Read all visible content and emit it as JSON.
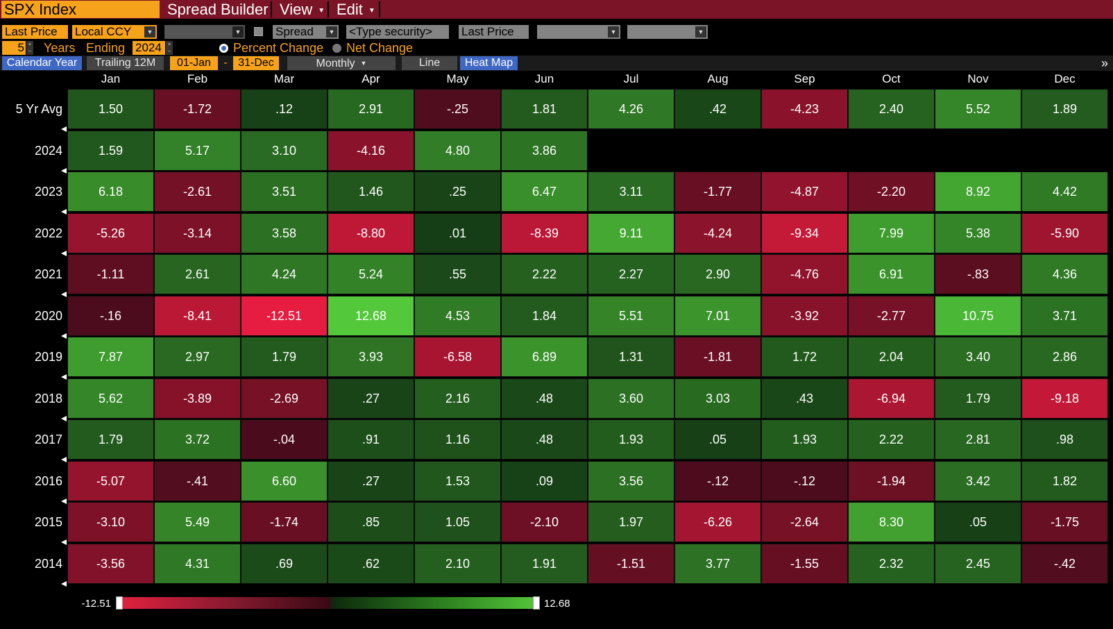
{
  "titlebar": {
    "security": "SPX Index",
    "menus": [
      {
        "label": "Spread Builder",
        "caret": ""
      },
      {
        "label": "View",
        "caret": "▼"
      },
      {
        "label": "Edit",
        "caret": "▼"
      }
    ]
  },
  "toolbar": {
    "price_field": "Last Price",
    "currency": "Local CCY",
    "spread_label": "Spread",
    "security_placeholder": "<Type security>",
    "price_field_2": "Last Price",
    "years_value": "5",
    "years_label": "Years",
    "ending_label": "Ending",
    "ending_year": "2024",
    "percent_change_label": "Percent Change",
    "net_change_label": "Net Change"
  },
  "tabs": {
    "calendar_year": "Calendar Year",
    "trailing_12m": "Trailing 12M",
    "start_date": "01-Jan",
    "dash": "-",
    "end_date": "31-Dec",
    "periodicity": "Monthly",
    "line": "Line",
    "heat_map": "Heat Map",
    "expand": "»"
  },
  "colors": {
    "title_bar": "#7a1426",
    "accent_orange": "#f7a21b",
    "selected_tab": "#3f67c4",
    "negative_max": "#e0203e",
    "positive_max": "#55c83a"
  },
  "heatmap": {
    "months": [
      "Jan",
      "Feb",
      "Mar",
      "Apr",
      "May",
      "Jun",
      "Jul",
      "Aug",
      "Sep",
      "Oct",
      "Nov",
      "Dec"
    ],
    "rows": [
      {
        "label": "5 Yr Avg",
        "values": [
          "1.50",
          "-1.72",
          ".12",
          "2.91",
          "-.25",
          "1.81",
          "4.26",
          ".42",
          "-4.23",
          "2.40",
          "5.52",
          "1.89"
        ]
      },
      {
        "label": "2024",
        "values": [
          "1.59",
          "5.17",
          "3.10",
          "-4.16",
          "4.80",
          "3.86",
          "",
          "",
          "",
          "",
          "",
          ""
        ]
      },
      {
        "label": "2023",
        "values": [
          "6.18",
          "-2.61",
          "3.51",
          "1.46",
          ".25",
          "6.47",
          "3.11",
          "-1.77",
          "-4.87",
          "-2.20",
          "8.92",
          "4.42"
        ]
      },
      {
        "label": "2022",
        "values": [
          "-5.26",
          "-3.14",
          "3.58",
          "-8.80",
          ".01",
          "-8.39",
          "9.11",
          "-4.24",
          "-9.34",
          "7.99",
          "5.38",
          "-5.90"
        ]
      },
      {
        "label": "2021",
        "values": [
          "-1.11",
          "2.61",
          "4.24",
          "5.24",
          ".55",
          "2.22",
          "2.27",
          "2.90",
          "-4.76",
          "6.91",
          "-.83",
          "4.36"
        ]
      },
      {
        "label": "2020",
        "values": [
          "-.16",
          "-8.41",
          "-12.51",
          "12.68",
          "4.53",
          "1.84",
          "5.51",
          "7.01",
          "-3.92",
          "-2.77",
          "10.75",
          "3.71"
        ]
      },
      {
        "label": "2019",
        "values": [
          "7.87",
          "2.97",
          "1.79",
          "3.93",
          "-6.58",
          "6.89",
          "1.31",
          "-1.81",
          "1.72",
          "2.04",
          "3.40",
          "2.86"
        ]
      },
      {
        "label": "2018",
        "values": [
          "5.62",
          "-3.89",
          "-2.69",
          ".27",
          "2.16",
          ".48",
          "3.60",
          "3.03",
          ".43",
          "-6.94",
          "1.79",
          "-9.18"
        ]
      },
      {
        "label": "2017",
        "values": [
          "1.79",
          "3.72",
          "-.04",
          ".91",
          "1.16",
          ".48",
          "1.93",
          ".05",
          "1.93",
          "2.22",
          "2.81",
          ".98"
        ]
      },
      {
        "label": "2016",
        "values": [
          "-5.07",
          "-.41",
          "6.60",
          ".27",
          "1.53",
          ".09",
          "3.56",
          "-.12",
          "-.12",
          "-1.94",
          "3.42",
          "1.82"
        ]
      },
      {
        "label": "2015",
        "values": [
          "-3.10",
          "5.49",
          "-1.74",
          ".85",
          "1.05",
          "-2.10",
          "1.97",
          "-6.26",
          "-2.64",
          "8.30",
          ".05",
          "-1.75"
        ]
      },
      {
        "label": "2014",
        "values": [
          "-3.56",
          "4.31",
          ".69",
          ".62",
          "2.10",
          "1.91",
          "-1.51",
          "3.77",
          "-1.55",
          "2.32",
          "2.45",
          "-.42"
        ]
      }
    ]
  },
  "legend": {
    "min": "-12.51",
    "max": "12.68"
  }
}
